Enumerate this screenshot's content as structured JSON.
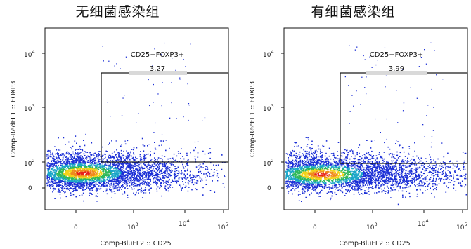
{
  "panels": [
    {
      "title": "无细菌感染组",
      "gate_name": "CD25+FOXP3+",
      "gate_value": "3.27"
    },
    {
      "title": "有细菌感染组",
      "gate_name": "CD25+FOXP3+",
      "gate_value": "3.99"
    }
  ],
  "chart_data": [
    {
      "type": "scatter",
      "title": "无细菌感染组",
      "xlabel": "Comp-BluFL2 :: CD25",
      "ylabel": "Comp-RedFL1 :: FOXP3",
      "x_scale": "biexponential",
      "y_scale": "biexponential",
      "x_ticks": [
        "0",
        "10^3",
        "10^4",
        "10^5"
      ],
      "y_ticks": [
        "0",
        "10^2",
        "10^3",
        "10^4"
      ],
      "gate": {
        "label": "CD25+FOXP3+",
        "percent": 3.27,
        "x_min_label": "~10^2.5",
        "y_min_label": "10^2"
      }
    },
    {
      "type": "scatter",
      "title": "有细菌感染组",
      "xlabel": "Comp-BluFL2 :: CD25",
      "ylabel": "Comp-RecFL1 :: FOXP3",
      "x_scale": "biexponential",
      "y_scale": "biexponential",
      "x_ticks": [
        "0",
        "10^3",
        "10^4",
        "10^5"
      ],
      "y_ticks": [
        "0",
        "10^2",
        "10^3",
        "10^4"
      ],
      "gate": {
        "label": "CD25+FOXP3+",
        "percent": 3.99,
        "x_min_label": "~10^2.5",
        "y_min_label": "10^2"
      }
    }
  ],
  "colors": {
    "high_density": "#e8201a",
    "mid_density": "#f2d21a",
    "low_mid_density": "#2fb85a",
    "low_density": "#1b2fd6",
    "gate_line": "#111111",
    "gate_label_bg": "#d9d9d9"
  }
}
